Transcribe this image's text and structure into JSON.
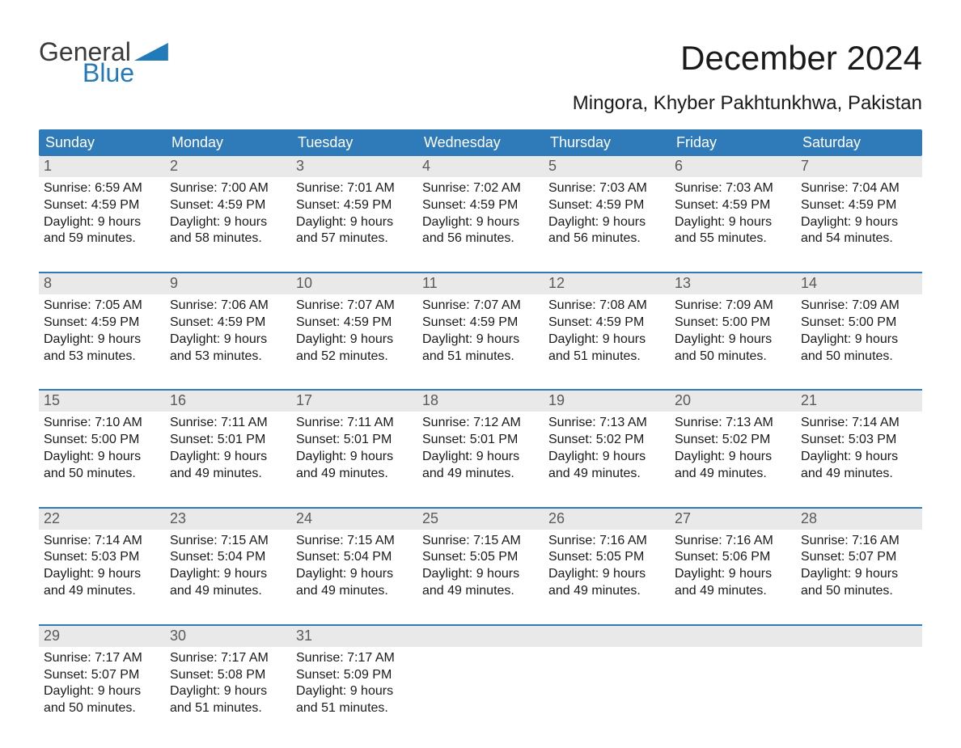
{
  "brand": {
    "word1": "General",
    "word2": "Blue",
    "color_brand": "#237ab9",
    "color_text": "#3a3a3a"
  },
  "title": "December 2024",
  "location": "Mingora, Khyber Pakhtunkhwa, Pakistan",
  "colors": {
    "header_bg": "#2f7ab8",
    "header_text": "#ffffff",
    "daynum_bg": "#e9e9e9",
    "daynum_text": "#5a5a5a",
    "cell_text": "#1a1a1a",
    "rule": "#2f7ab8",
    "page_bg": "#ffffff"
  },
  "typography": {
    "title_fontsize": 42,
    "location_fontsize": 24,
    "dow_fontsize": 18,
    "daynum_fontsize": 18,
    "cell_fontsize": 16
  },
  "days_of_week": [
    "Sunday",
    "Monday",
    "Tuesday",
    "Wednesday",
    "Thursday",
    "Friday",
    "Saturday"
  ],
  "weeks": [
    [
      {
        "n": "1",
        "sunrise": "Sunrise: 6:59 AM",
        "sunset": "Sunset: 4:59 PM",
        "d1": "Daylight: 9 hours",
        "d2": "and 59 minutes."
      },
      {
        "n": "2",
        "sunrise": "Sunrise: 7:00 AM",
        "sunset": "Sunset: 4:59 PM",
        "d1": "Daylight: 9 hours",
        "d2": "and 58 minutes."
      },
      {
        "n": "3",
        "sunrise": "Sunrise: 7:01 AM",
        "sunset": "Sunset: 4:59 PM",
        "d1": "Daylight: 9 hours",
        "d2": "and 57 minutes."
      },
      {
        "n": "4",
        "sunrise": "Sunrise: 7:02 AM",
        "sunset": "Sunset: 4:59 PM",
        "d1": "Daylight: 9 hours",
        "d2": "and 56 minutes."
      },
      {
        "n": "5",
        "sunrise": "Sunrise: 7:03 AM",
        "sunset": "Sunset: 4:59 PM",
        "d1": "Daylight: 9 hours",
        "d2": "and 56 minutes."
      },
      {
        "n": "6",
        "sunrise": "Sunrise: 7:03 AM",
        "sunset": "Sunset: 4:59 PM",
        "d1": "Daylight: 9 hours",
        "d2": "and 55 minutes."
      },
      {
        "n": "7",
        "sunrise": "Sunrise: 7:04 AM",
        "sunset": "Sunset: 4:59 PM",
        "d1": "Daylight: 9 hours",
        "d2": "and 54 minutes."
      }
    ],
    [
      {
        "n": "8",
        "sunrise": "Sunrise: 7:05 AM",
        "sunset": "Sunset: 4:59 PM",
        "d1": "Daylight: 9 hours",
        "d2": "and 53 minutes."
      },
      {
        "n": "9",
        "sunrise": "Sunrise: 7:06 AM",
        "sunset": "Sunset: 4:59 PM",
        "d1": "Daylight: 9 hours",
        "d2": "and 53 minutes."
      },
      {
        "n": "10",
        "sunrise": "Sunrise: 7:07 AM",
        "sunset": "Sunset: 4:59 PM",
        "d1": "Daylight: 9 hours",
        "d2": "and 52 minutes."
      },
      {
        "n": "11",
        "sunrise": "Sunrise: 7:07 AM",
        "sunset": "Sunset: 4:59 PM",
        "d1": "Daylight: 9 hours",
        "d2": "and 51 minutes."
      },
      {
        "n": "12",
        "sunrise": "Sunrise: 7:08 AM",
        "sunset": "Sunset: 4:59 PM",
        "d1": "Daylight: 9 hours",
        "d2": "and 51 minutes."
      },
      {
        "n": "13",
        "sunrise": "Sunrise: 7:09 AM",
        "sunset": "Sunset: 5:00 PM",
        "d1": "Daylight: 9 hours",
        "d2": "and 50 minutes."
      },
      {
        "n": "14",
        "sunrise": "Sunrise: 7:09 AM",
        "sunset": "Sunset: 5:00 PM",
        "d1": "Daylight: 9 hours",
        "d2": "and 50 minutes."
      }
    ],
    [
      {
        "n": "15",
        "sunrise": "Sunrise: 7:10 AM",
        "sunset": "Sunset: 5:00 PM",
        "d1": "Daylight: 9 hours",
        "d2": "and 50 minutes."
      },
      {
        "n": "16",
        "sunrise": "Sunrise: 7:11 AM",
        "sunset": "Sunset: 5:01 PM",
        "d1": "Daylight: 9 hours",
        "d2": "and 49 minutes."
      },
      {
        "n": "17",
        "sunrise": "Sunrise: 7:11 AM",
        "sunset": "Sunset: 5:01 PM",
        "d1": "Daylight: 9 hours",
        "d2": "and 49 minutes."
      },
      {
        "n": "18",
        "sunrise": "Sunrise: 7:12 AM",
        "sunset": "Sunset: 5:01 PM",
        "d1": "Daylight: 9 hours",
        "d2": "and 49 minutes."
      },
      {
        "n": "19",
        "sunrise": "Sunrise: 7:13 AM",
        "sunset": "Sunset: 5:02 PM",
        "d1": "Daylight: 9 hours",
        "d2": "and 49 minutes."
      },
      {
        "n": "20",
        "sunrise": "Sunrise: 7:13 AM",
        "sunset": "Sunset: 5:02 PM",
        "d1": "Daylight: 9 hours",
        "d2": "and 49 minutes."
      },
      {
        "n": "21",
        "sunrise": "Sunrise: 7:14 AM",
        "sunset": "Sunset: 5:03 PM",
        "d1": "Daylight: 9 hours",
        "d2": "and 49 minutes."
      }
    ],
    [
      {
        "n": "22",
        "sunrise": "Sunrise: 7:14 AM",
        "sunset": "Sunset: 5:03 PM",
        "d1": "Daylight: 9 hours",
        "d2": "and 49 minutes."
      },
      {
        "n": "23",
        "sunrise": "Sunrise: 7:15 AM",
        "sunset": "Sunset: 5:04 PM",
        "d1": "Daylight: 9 hours",
        "d2": "and 49 minutes."
      },
      {
        "n": "24",
        "sunrise": "Sunrise: 7:15 AM",
        "sunset": "Sunset: 5:04 PM",
        "d1": "Daylight: 9 hours",
        "d2": "and 49 minutes."
      },
      {
        "n": "25",
        "sunrise": "Sunrise: 7:15 AM",
        "sunset": "Sunset: 5:05 PM",
        "d1": "Daylight: 9 hours",
        "d2": "and 49 minutes."
      },
      {
        "n": "26",
        "sunrise": "Sunrise: 7:16 AM",
        "sunset": "Sunset: 5:05 PM",
        "d1": "Daylight: 9 hours",
        "d2": "and 49 minutes."
      },
      {
        "n": "27",
        "sunrise": "Sunrise: 7:16 AM",
        "sunset": "Sunset: 5:06 PM",
        "d1": "Daylight: 9 hours",
        "d2": "and 49 minutes."
      },
      {
        "n": "28",
        "sunrise": "Sunrise: 7:16 AM",
        "sunset": "Sunset: 5:07 PM",
        "d1": "Daylight: 9 hours",
        "d2": "and 50 minutes."
      }
    ],
    [
      {
        "n": "29",
        "sunrise": "Sunrise: 7:17 AM",
        "sunset": "Sunset: 5:07 PM",
        "d1": "Daylight: 9 hours",
        "d2": "and 50 minutes."
      },
      {
        "n": "30",
        "sunrise": "Sunrise: 7:17 AM",
        "sunset": "Sunset: 5:08 PM",
        "d1": "Daylight: 9 hours",
        "d2": "and 51 minutes."
      },
      {
        "n": "31",
        "sunrise": "Sunrise: 7:17 AM",
        "sunset": "Sunset: 5:09 PM",
        "d1": "Daylight: 9 hours",
        "d2": "and 51 minutes."
      },
      {
        "n": "",
        "sunrise": "",
        "sunset": "",
        "d1": "",
        "d2": ""
      },
      {
        "n": "",
        "sunrise": "",
        "sunset": "",
        "d1": "",
        "d2": ""
      },
      {
        "n": "",
        "sunrise": "",
        "sunset": "",
        "d1": "",
        "d2": ""
      },
      {
        "n": "",
        "sunrise": "",
        "sunset": "",
        "d1": "",
        "d2": ""
      }
    ]
  ]
}
